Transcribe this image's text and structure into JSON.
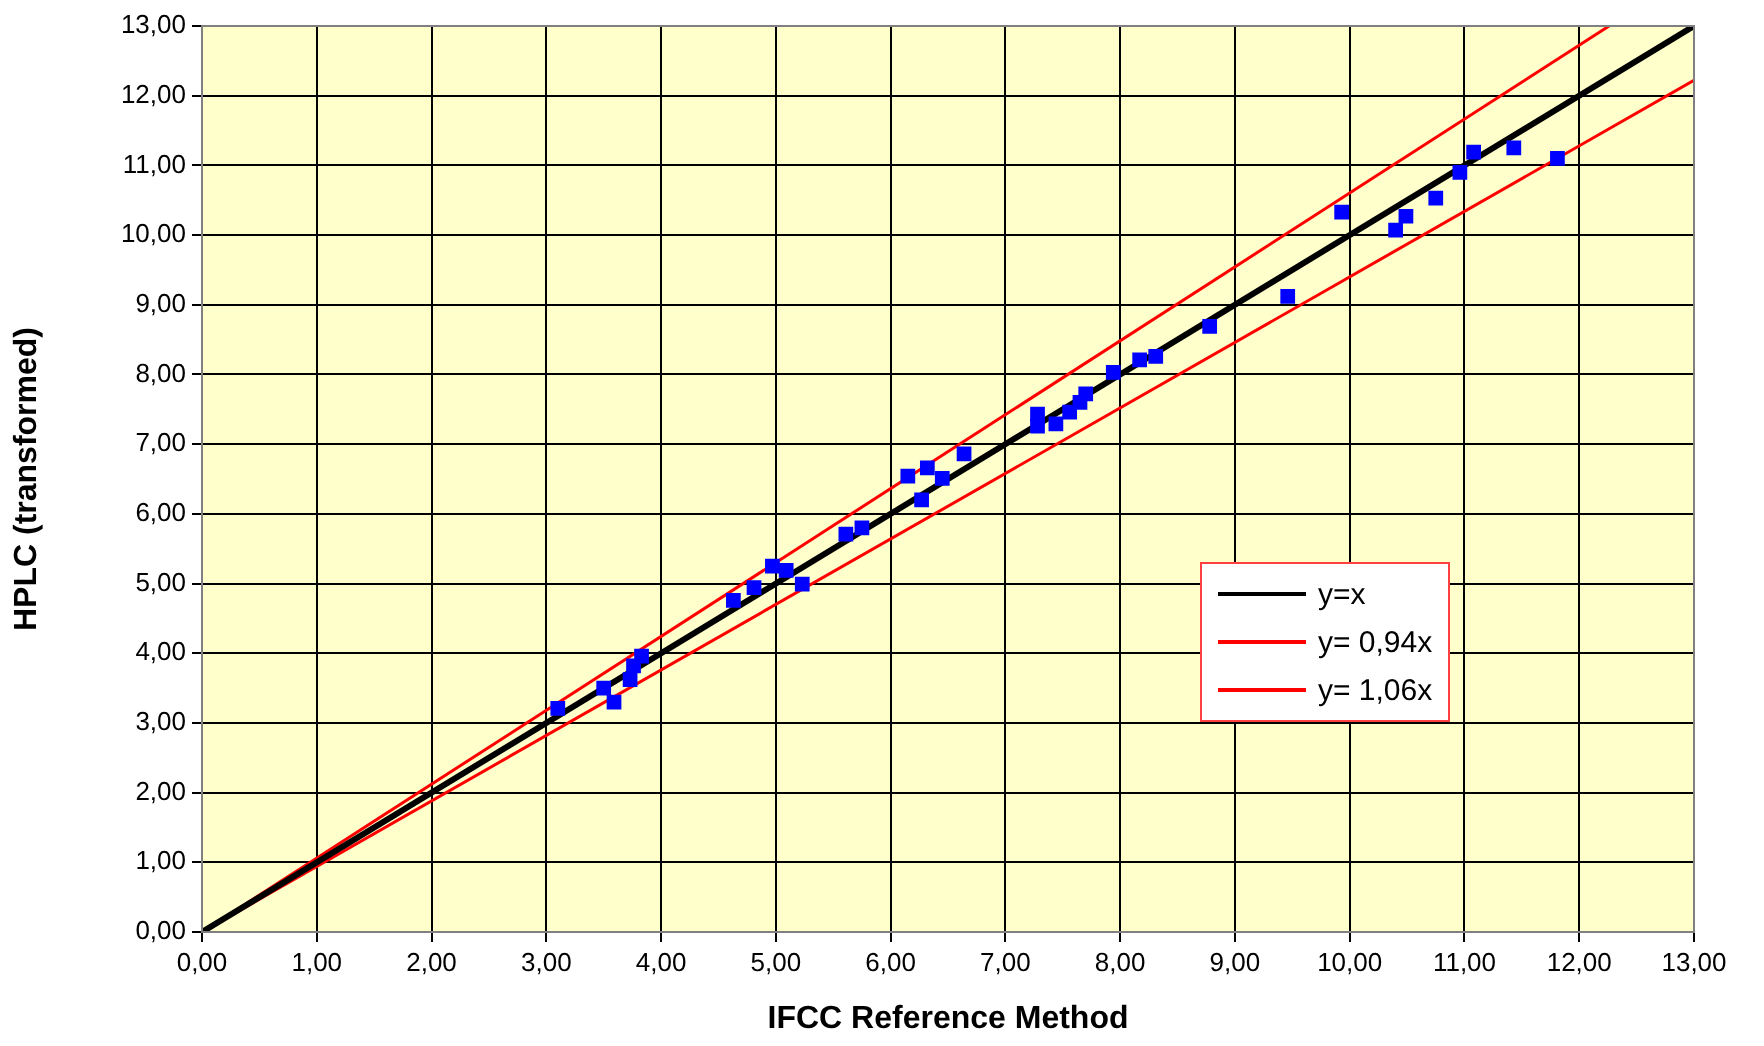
{
  "chart_data": {
    "type": "scatter",
    "xlabel": "IFCC Reference Method",
    "ylabel": "HPLC (transformed)",
    "xlim": [
      0,
      13
    ],
    "ylim": [
      0,
      13
    ],
    "xticks": [
      {
        "value": 0,
        "label": "0,00"
      },
      {
        "value": 1,
        "label": "1,00"
      },
      {
        "value": 2,
        "label": "2,00"
      },
      {
        "value": 3,
        "label": "3,00"
      },
      {
        "value": 4,
        "label": "4,00"
      },
      {
        "value": 5,
        "label": "5,00"
      },
      {
        "value": 6,
        "label": "6,00"
      },
      {
        "value": 7,
        "label": "7,00"
      },
      {
        "value": 8,
        "label": "8,00"
      },
      {
        "value": 9,
        "label": "9,00"
      },
      {
        "value": 10,
        "label": "10,00"
      },
      {
        "value": 11,
        "label": "11,00"
      },
      {
        "value": 12,
        "label": "12,00"
      },
      {
        "value": 13,
        "label": "13,00"
      }
    ],
    "yticks": [
      {
        "value": 0,
        "label": "0,00"
      },
      {
        "value": 1,
        "label": "1,00"
      },
      {
        "value": 2,
        "label": "2,00"
      },
      {
        "value": 3,
        "label": "3,00"
      },
      {
        "value": 4,
        "label": "4,00"
      },
      {
        "value": 5,
        "label": "5,00"
      },
      {
        "value": 6,
        "label": "6,00"
      },
      {
        "value": 7,
        "label": "7,00"
      },
      {
        "value": 8,
        "label": "8,00"
      },
      {
        "value": 9,
        "label": "9,00"
      },
      {
        "value": 10,
        "label": "10,00"
      },
      {
        "value": 11,
        "label": "11,00"
      },
      {
        "value": 12,
        "label": "12,00"
      },
      {
        "value": 13,
        "label": "13,00"
      }
    ],
    "grid": true,
    "legend": "right",
    "series": [
      {
        "marker": "square",
        "color": "#0000ff",
        "x": [
          3.1,
          3.5,
          3.59,
          3.73,
          3.76,
          3.83,
          4.63,
          4.81,
          4.97,
          5.09,
          5.23,
          5.61,
          5.75,
          6.15,
          6.32,
          6.45,
          6.27,
          6.64,
          7.28,
          7.28,
          7.44,
          7.56,
          7.65,
          7.7,
          7.94,
          8.17,
          8.31,
          8.78,
          9.46,
          9.93,
          10.4,
          10.49,
          10.75,
          10.96,
          11.08,
          11.43,
          11.81
        ],
        "values": [
          3.21,
          3.5,
          3.3,
          3.62,
          3.82,
          3.96,
          4.76,
          4.94,
          5.25,
          5.19,
          4.99,
          5.71,
          5.8,
          6.54,
          6.66,
          6.51,
          6.2,
          6.86,
          7.43,
          7.26,
          7.29,
          7.46,
          7.6,
          7.72,
          8.03,
          8.21,
          8.26,
          8.69,
          9.12,
          10.33,
          10.07,
          10.27,
          10.53,
          10.9,
          11.19,
          11.25,
          11.1
        ]
      },
      {
        "type": "line",
        "marker": "none",
        "name": "y=x",
        "color": "#000000",
        "x": [
          0,
          13
        ],
        "values": [
          0,
          13
        ]
      },
      {
        "type": "line",
        "marker": "none",
        "name": "y= 0,94x",
        "color": "#ff0000",
        "x": [
          0,
          13
        ],
        "values": [
          0,
          12.22
        ]
      },
      {
        "type": "line",
        "marker": "none",
        "name": "y= 1,06x",
        "color": "#ff0000",
        "x": [
          0,
          12.26
        ],
        "values": [
          0,
          13
        ]
      }
    ]
  }
}
